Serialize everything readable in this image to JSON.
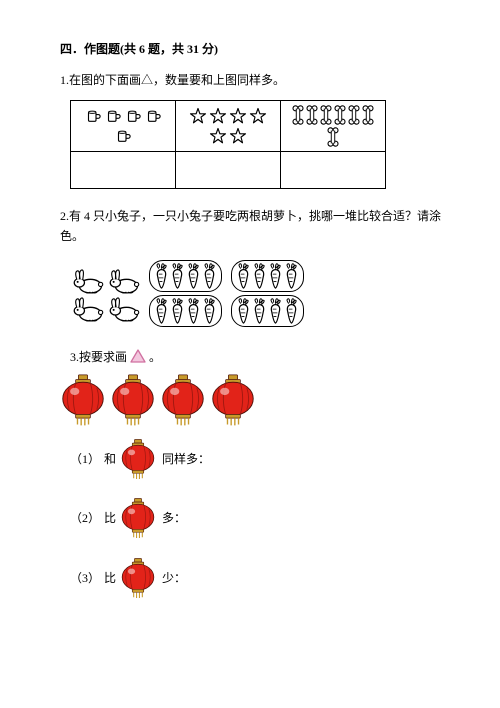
{
  "section": {
    "header": "四．作图题(共 6 题，共 31 分)"
  },
  "q1": {
    "text": "1.在图的下面画△，数量要和上图同样多。",
    "cups_count": 5,
    "stars_count": 6,
    "bones_count": 7,
    "icon_stroke": "#000000",
    "icon_fill": "#ffffff"
  },
  "q2": {
    "text": "2.有 4 只小兔子，一只小兔子要吃两根胡萝卜，挑哪一堆比较合适？请涂色。",
    "rabbits_count": 4,
    "carrot_groups": [
      4,
      4,
      4,
      4
    ],
    "rabbit_stroke": "#000000",
    "carrot_stroke": "#000000"
  },
  "q3": {
    "prefix": "3.按要求画",
    "suffix": "。",
    "triangle_fill": "#f3c7de",
    "triangle_stroke": "#d070a0",
    "example_lanterns": 4,
    "lantern": {
      "red": "#e22319",
      "highlight": "#f4a9a4",
      "dark": "#a01810",
      "gold": "#c79a2a",
      "stroke": "#4a1008"
    },
    "sub": [
      {
        "num": "（1）",
        "before": "和",
        "after": "同样多："
      },
      {
        "num": "（2）",
        "before": "比",
        "after": "多："
      },
      {
        "num": "（3）",
        "before": "比",
        "after": "少："
      }
    ]
  }
}
